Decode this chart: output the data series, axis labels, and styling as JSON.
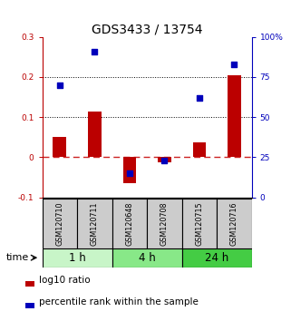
{
  "title": "GDS3433 / 13754",
  "samples": [
    "GSM120710",
    "GSM120711",
    "GSM120648",
    "GSM120708",
    "GSM120715",
    "GSM120716"
  ],
  "log10_ratio": [
    0.05,
    0.115,
    -0.065,
    -0.012,
    0.038,
    0.205
  ],
  "percentile_rank_pct": [
    70,
    91,
    15,
    23,
    62,
    83
  ],
  "groups": [
    {
      "label": "1 h",
      "indices": [
        0,
        1
      ],
      "color": "#c8f5c8"
    },
    {
      "label": "4 h",
      "indices": [
        2,
        3
      ],
      "color": "#88e888"
    },
    {
      "label": "24 h",
      "indices": [
        4,
        5
      ],
      "color": "#44cc44"
    }
  ],
  "ylim_left": [
    -0.1,
    0.3
  ],
  "ylim_right": [
    0,
    100
  ],
  "yticks_left": [
    -0.1,
    0.0,
    0.1,
    0.2,
    0.3
  ],
  "yticks_left_labels": [
    "-0.1",
    "0",
    "0.1",
    "0.2",
    "0.3"
  ],
  "yticks_right": [
    0,
    25,
    50,
    75,
    100
  ],
  "yticks_right_labels": [
    "0",
    "25",
    "50",
    "75",
    "100%"
  ],
  "bar_color": "#bb0000",
  "point_color": "#0000bb",
  "hline_color": "#cc2222",
  "grid_color": "black",
  "title_fontsize": 10,
  "tick_fontsize": 6.5,
  "sample_fontsize": 5.8,
  "group_label_fontsize": 8.5,
  "legend_fontsize": 7.5,
  "time_fontsize": 8
}
